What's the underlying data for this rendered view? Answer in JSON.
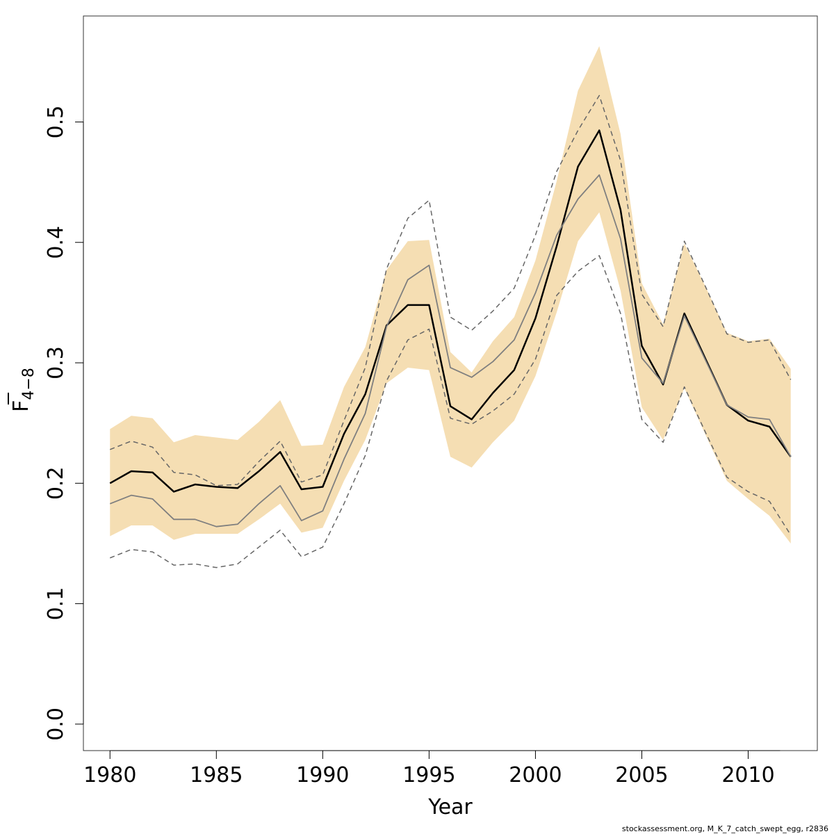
{
  "chart_data": {
    "type": "line",
    "xlabel": "Year",
    "ylabel": {
      "main": "F",
      "sub": "4−8"
    },
    "xlim": [
      1978.75,
      2013.25
    ],
    "ylim": [
      -0.022,
      0.588
    ],
    "xticks": [
      1980,
      1985,
      1990,
      1995,
      2000,
      2005,
      2010
    ],
    "yticks": [
      0.0,
      0.1,
      0.2,
      0.3,
      0.4,
      0.5
    ],
    "ytick_labels": [
      "0.0",
      "0.1",
      "0.2",
      "0.3",
      "0.4",
      "0.5"
    ],
    "grid": false,
    "years": [
      1980,
      1981,
      1982,
      1983,
      1984,
      1985,
      1986,
      1987,
      1988,
      1989,
      1990,
      1991,
      1992,
      1993,
      1994,
      1995,
      1996,
      1997,
      1998,
      1999,
      2000,
      2001,
      2002,
      2003,
      2004,
      2005,
      2006,
      2007,
      2008,
      2009,
      2010,
      2011,
      2012
    ],
    "band": {
      "upper": [
        0.245,
        0.256,
        0.254,
        0.234,
        0.24,
        0.238,
        0.236,
        0.251,
        0.269,
        0.231,
        0.232,
        0.28,
        0.313,
        0.377,
        0.401,
        0.402,
        0.309,
        0.292,
        0.318,
        0.338,
        0.385,
        0.451,
        0.526,
        0.563,
        0.49,
        0.366,
        0.332,
        0.399,
        0.363,
        0.325,
        0.318,
        0.32,
        0.295
      ],
      "lower": [
        0.156,
        0.165,
        0.165,
        0.153,
        0.158,
        0.158,
        0.158,
        0.17,
        0.183,
        0.159,
        0.163,
        0.202,
        0.236,
        0.283,
        0.296,
        0.294,
        0.222,
        0.213,
        0.234,
        0.252,
        0.289,
        0.342,
        0.401,
        0.425,
        0.36,
        0.263,
        0.236,
        0.279,
        0.24,
        0.202,
        0.187,
        0.173,
        0.15
      ],
      "color": "#f5deb3"
    },
    "series": [
      {
        "values": [
          0.2,
          0.21,
          0.209,
          0.193,
          0.199,
          0.197,
          0.196,
          0.21,
          0.226,
          0.195,
          0.197,
          0.241,
          0.274,
          0.331,
          0.348,
          0.348,
          0.264,
          0.253,
          0.275,
          0.294,
          0.337,
          0.397,
          0.463,
          0.493,
          0.427,
          0.314,
          0.282,
          0.341,
          0.303,
          0.265,
          0.252,
          0.247,
          0.222
        ],
        "color": "#000000",
        "style": "solid",
        "width": 2.5
      },
      {
        "values": [
          0.183,
          0.19,
          0.187,
          0.17,
          0.17,
          0.164,
          0.166,
          0.183,
          0.198,
          0.169,
          0.177,
          0.22,
          0.258,
          0.33,
          0.369,
          0.381,
          0.296,
          0.288,
          0.301,
          0.319,
          0.358,
          0.406,
          0.436,
          0.456,
          0.403,
          0.304,
          0.283,
          0.339,
          0.302,
          0.265,
          0.255,
          0.253,
          0.222
        ],
        "color": "#7f7f7f",
        "style": "solid",
        "width": 1.8
      },
      {
        "values": [
          0.228,
          0.235,
          0.23,
          0.209,
          0.207,
          0.198,
          0.199,
          0.218,
          0.235,
          0.201,
          0.207,
          0.252,
          0.296,
          0.378,
          0.42,
          0.435,
          0.338,
          0.327,
          0.343,
          0.362,
          0.406,
          0.459,
          0.493,
          0.522,
          0.468,
          0.357,
          0.33,
          0.401,
          0.363,
          0.324,
          0.317,
          0.319,
          0.286
        ],
        "color": "#666666",
        "style": "dashed",
        "width": 1.5
      },
      {
        "values": [
          0.138,
          0.145,
          0.143,
          0.132,
          0.133,
          0.13,
          0.133,
          0.147,
          0.161,
          0.139,
          0.147,
          0.183,
          0.223,
          0.285,
          0.319,
          0.328,
          0.254,
          0.249,
          0.26,
          0.274,
          0.303,
          0.356,
          0.376,
          0.389,
          0.341,
          0.253,
          0.234,
          0.28,
          0.242,
          0.205,
          0.193,
          0.185,
          0.157
        ],
        "color": "#666666",
        "style": "dashed",
        "width": 1.5
      }
    ]
  },
  "footer": "stockassessment.org, M_K_7_catch_swept_egg, r2836"
}
